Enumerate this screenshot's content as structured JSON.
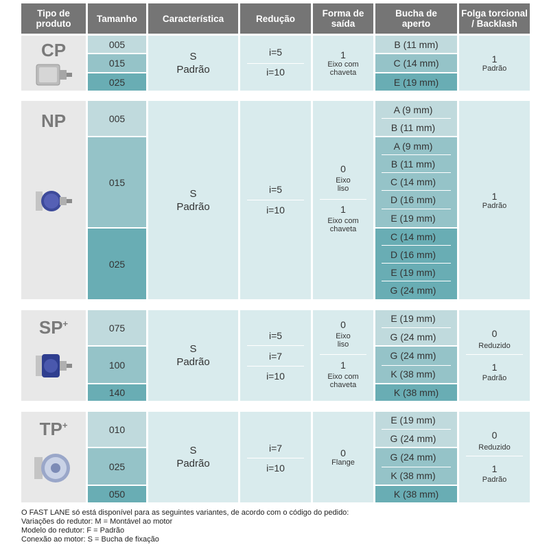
{
  "headers": {
    "tipo": "Tipo de produto",
    "tamanho": "Tamanho",
    "caracteristica": "Característica",
    "reducao": "Redução",
    "forma": "Forma de saída",
    "bucha": "Bucha de aperto",
    "folga": "Folga torcional / Backlash"
  },
  "cp": {
    "name": "CP",
    "sizes": [
      "005",
      "015",
      "025"
    ],
    "car_code": "S",
    "car_label": "Padrão",
    "reducao": [
      "i=5",
      "i=10"
    ],
    "forma_num": "1",
    "forma_label": "Eixo com chaveta",
    "bucha": [
      "B (11 mm)",
      "C (14 mm)",
      "E (19 mm)"
    ],
    "folga_num": "1",
    "folga_label": "Padrão"
  },
  "np": {
    "name": "NP",
    "sizes": [
      "005",
      "015",
      "025"
    ],
    "car_code": "S",
    "car_label": "Padrão",
    "reducao": [
      "i=5",
      "i=10"
    ],
    "forma0_num": "0",
    "forma0_label": "Eixo liso",
    "forma1_num": "1",
    "forma1_label": "Eixo com chaveta",
    "bucha": [
      "A (9 mm)",
      "B (11 mm)",
      "A (9 mm)",
      "B (11 mm)",
      "C (14 mm)",
      "D (16 mm)",
      "E (19 mm)",
      "C (14 mm)",
      "D (16 mm)",
      "E (19 mm)",
      "G (24 mm)"
    ],
    "folga_num": "1",
    "folga_label": "Padrão"
  },
  "sp": {
    "name": "SP",
    "sup": "+",
    "sizes": [
      "075",
      "100",
      "140"
    ],
    "car_code": "S",
    "car_label": "Padrão",
    "reducao": [
      "i=5",
      "i=7",
      "i=10"
    ],
    "forma0_num": "0",
    "forma0_label": "Eixo liso",
    "forma1_num": "1",
    "forma1_label": "Eixo com chaveta",
    "bucha": [
      "E (19 mm)",
      "G (24 mm)",
      "G (24 mm)",
      "K (38 mm)",
      "K (38 mm)"
    ],
    "folga0_num": "0",
    "folga0_label": "Reduzido",
    "folga1_num": "1",
    "folga1_label": "Padrão"
  },
  "tp": {
    "name": "TP",
    "sup": "+",
    "sizes": [
      "010",
      "025",
      "050"
    ],
    "car_code": "S",
    "car_label": "Padrão",
    "reducao": [
      "i=7",
      "i=10"
    ],
    "forma_num": "0",
    "forma_label": "Flange",
    "bucha": [
      "E (19 mm)",
      "G (24 mm)",
      "G (24 mm)",
      "K (38 mm)",
      "K (38 mm)"
    ],
    "folga0_num": "0",
    "folga0_label": "Reduzido",
    "folga1_num": "1",
    "folga1_label": "Padrão"
  },
  "footnote": [
    "O FAST LANE só está disponível para as seguintes variantes, de acordo com o código do pedido:",
    "Variações do redutor: M = Montável ao motor",
    "Modelo do redutor: F = Padrão",
    "Conexão ao motor: S = Bucha de fixação"
  ]
}
